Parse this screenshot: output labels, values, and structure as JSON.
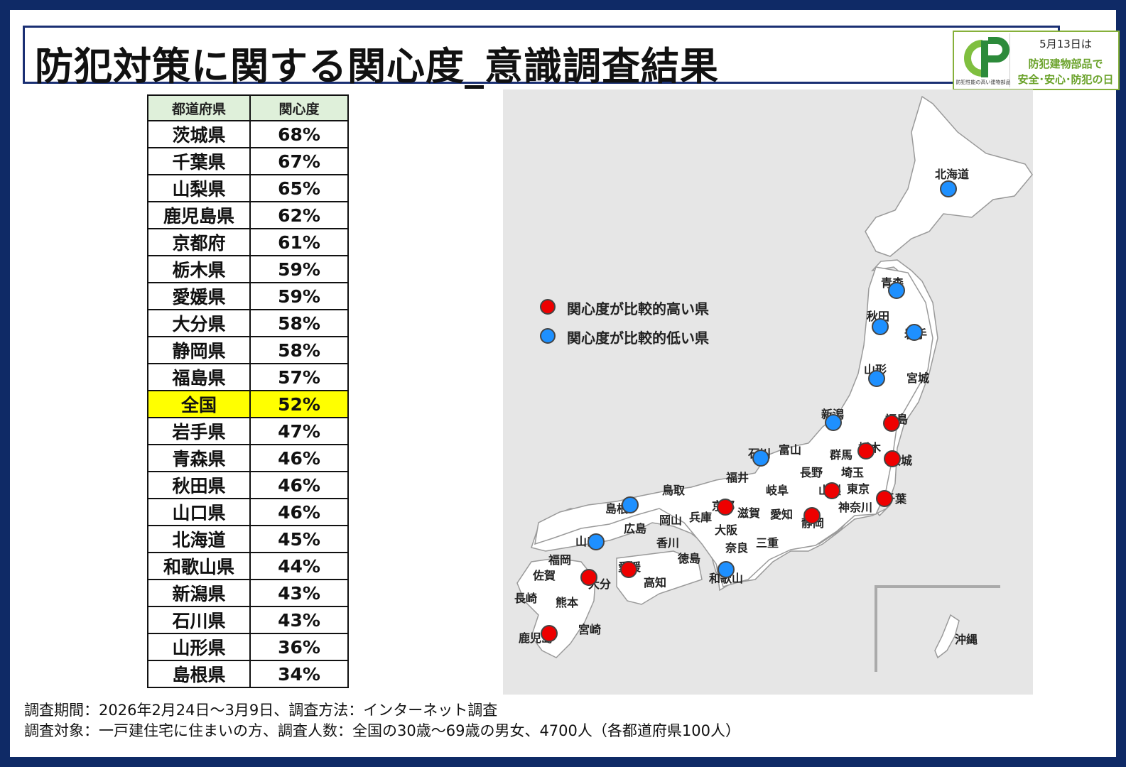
{
  "title": "防犯対策に関する関心度_意識調査結果",
  "logo": {
    "date_text": "5月13日は",
    "line1": "防犯建物部品で",
    "line2": "安全･安心･防犯の日",
    "small_text": "防犯性能の高い建物部品",
    "mark_letters": "CP",
    "colors": {
      "green": "#6aa22a",
      "dark_green": "#2c8a3a"
    }
  },
  "table": {
    "headers": [
      "都道府県",
      "関心度"
    ],
    "rows": [
      {
        "pref": "茨城県",
        "value": "68%"
      },
      {
        "pref": "千葉県",
        "value": "67%"
      },
      {
        "pref": "山梨県",
        "value": "65%"
      },
      {
        "pref": "鹿児島県",
        "value": "62%"
      },
      {
        "pref": "京都府",
        "value": "61%"
      },
      {
        "pref": "栃木県",
        "value": "59%"
      },
      {
        "pref": "愛媛県",
        "value": "59%"
      },
      {
        "pref": "大分県",
        "value": "58%"
      },
      {
        "pref": "静岡県",
        "value": "58%"
      },
      {
        "pref": "福島県",
        "value": "57%"
      },
      {
        "pref": "全国",
        "value": "52%",
        "highlight": true
      },
      {
        "pref": "岩手県",
        "value": "47%"
      },
      {
        "pref": "青森県",
        "value": "46%"
      },
      {
        "pref": "秋田県",
        "value": "46%"
      },
      {
        "pref": "山口県",
        "value": "46%"
      },
      {
        "pref": "北海道",
        "value": "45%"
      },
      {
        "pref": "和歌山県",
        "value": "44%"
      },
      {
        "pref": "新潟県",
        "value": "43%"
      },
      {
        "pref": "石川県",
        "value": "43%"
      },
      {
        "pref": "山形県",
        "value": "36%"
      },
      {
        "pref": "島根県",
        "value": "34%"
      }
    ]
  },
  "legend": {
    "high_label": "関心度が比較的高い県",
    "low_label": "関心度が比較的低い県",
    "high_color": "#ee0000",
    "low_color": "#1e90ff"
  },
  "map": {
    "high_prefectures": [
      "福島",
      "栃木",
      "茨城",
      "千葉",
      "山梨",
      "静岡",
      "京都",
      "愛媛",
      "大分",
      "鹿児島"
    ],
    "low_prefectures": [
      "北海道",
      "青森",
      "秋田",
      "岩手",
      "山形",
      "新潟",
      "石川",
      "島根",
      "山口",
      "和歌山"
    ],
    "labels": {
      "hokkaido": "北海道",
      "aomori": "青森",
      "akita": "秋田",
      "iwate": "岩手",
      "yamagata": "山形",
      "miyagi": "宮城",
      "niigata": "新潟",
      "fukushima": "福島",
      "ishikawa": "石川",
      "toyama": "富山",
      "gunma": "群馬",
      "tochigi": "栃木",
      "ibaraki": "茨城",
      "fukui": "福井",
      "nagano": "長野",
      "saitama": "埼玉",
      "tottori": "鳥取",
      "gifu": "岐阜",
      "yamanashi": "山梨",
      "tokyo": "東京",
      "chiba": "千葉",
      "shimane": "島根",
      "kyoto": "京都",
      "shiga": "滋賀",
      "aichi": "愛知",
      "kanagawa": "神奈川",
      "okayama": "岡山",
      "hyogo": "兵庫",
      "shizuoka": "静岡",
      "hiroshima": "広島",
      "osaka": "大阪",
      "yamaguchi": "山口",
      "kagawa": "香川",
      "nara": "奈良",
      "mie": "三重",
      "fukuoka": "福岡",
      "tokushima": "徳島",
      "ehime": "愛媛",
      "saga": "佐賀",
      "oita": "大分",
      "kochi": "高知",
      "wakayama": "和歌山",
      "nagasaki": "長崎",
      "kumamoto": "熊本",
      "miyazaki": "宮崎",
      "kagoshima": "鹿児島",
      "okinawa": "沖縄"
    }
  },
  "notes": {
    "line1": "調査期間：2026年2月24日～3月9日、調査方法：インターネット調査",
    "line2": "調査対象：一戸建住宅に住まいの方、調査人数：全国の30歳～69歳の男女、4700人（各都道府県100人）"
  }
}
